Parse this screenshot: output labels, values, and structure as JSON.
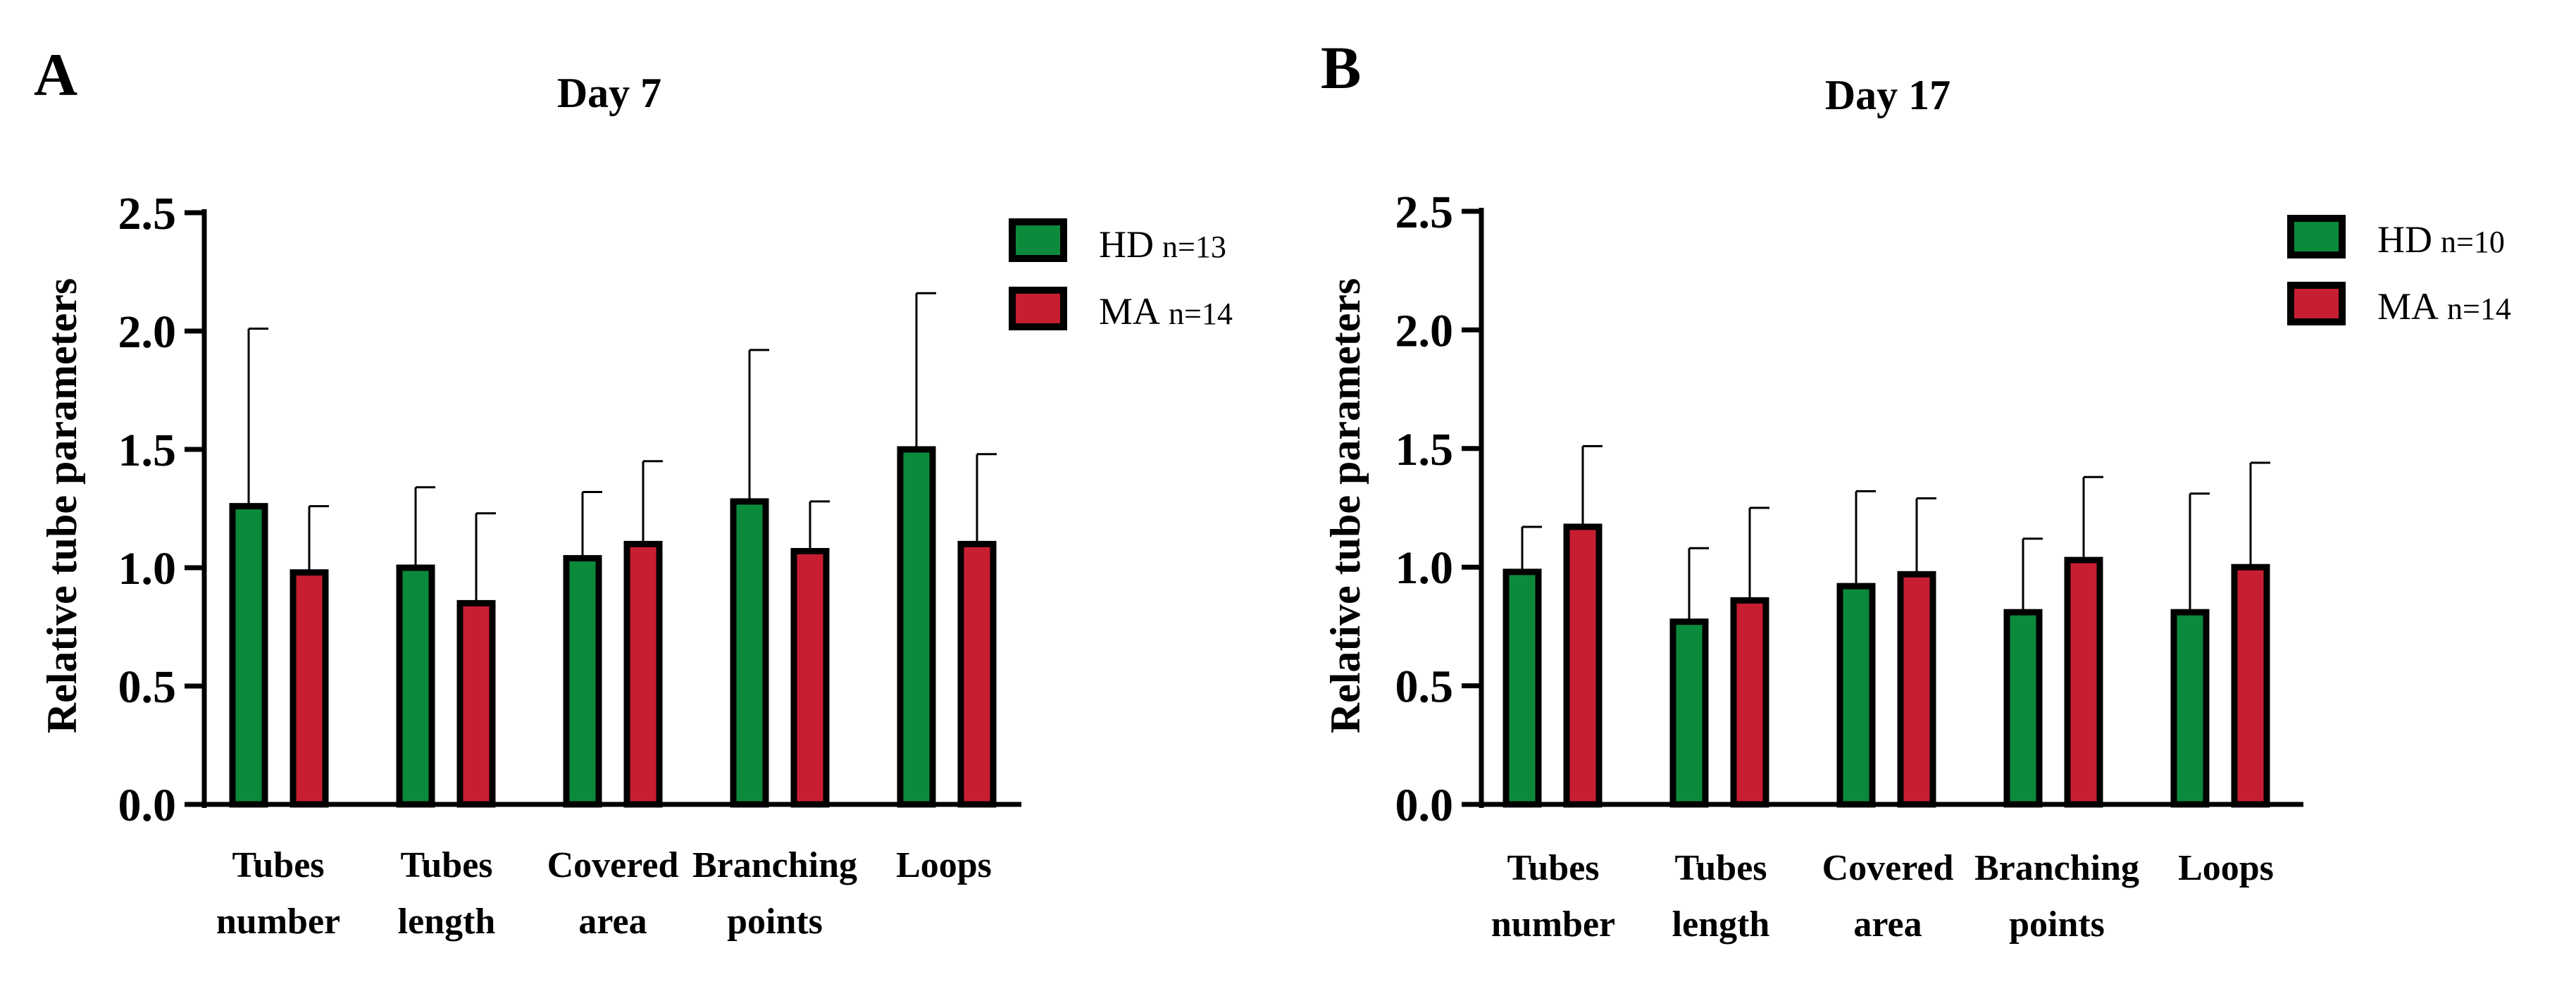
{
  "colors": {
    "hd": "#0b8a3c",
    "ma": "#c81e32",
    "axis": "#000000"
  },
  "chart_data": [
    {
      "type": "bar",
      "panel": "A",
      "title": "Day 7",
      "xlabel": "",
      "ylabel": "Relative tube parameters",
      "ylim": [
        0,
        2.5
      ],
      "yticks": [
        "0.0",
        "0.5",
        "1.0",
        "1.5",
        "2.0",
        "2.5"
      ],
      "categories": [
        [
          "Tubes",
          "number"
        ],
        [
          "Tubes",
          "length"
        ],
        [
          "Covered",
          "area"
        ],
        [
          "Branching",
          "points"
        ],
        [
          "Loops"
        ]
      ],
      "legend": {
        "position": "top-right"
      },
      "series": [
        {
          "name": "HD",
          "n": "n=13",
          "color": "#0b8a3c",
          "values": [
            1.26,
            1.0,
            1.04,
            1.28,
            1.5
          ],
          "errors": [
            0.75,
            0.34,
            0.28,
            0.64,
            0.66
          ]
        },
        {
          "name": "MA",
          "n": "n=14",
          "color": "#c81e32",
          "values": [
            0.98,
            0.85,
            1.1,
            1.07,
            1.1
          ],
          "errors": [
            0.28,
            0.38,
            0.35,
            0.21,
            0.38
          ]
        }
      ]
    },
    {
      "type": "bar",
      "panel": "B",
      "title": "Day 17",
      "xlabel": "",
      "ylabel": "Relative tube parameters",
      "ylim": [
        0,
        2.5
      ],
      "yticks": [
        "0.0",
        "0.5",
        "1.0",
        "1.5",
        "2.0",
        "2.5"
      ],
      "categories": [
        [
          "Tubes",
          "number"
        ],
        [
          "Tubes",
          "length"
        ],
        [
          "Covered",
          "area"
        ],
        [
          "Branching",
          "points"
        ],
        [
          "Loops"
        ]
      ],
      "legend": {
        "position": "top-right"
      },
      "series": [
        {
          "name": "HD",
          "n": "n=10",
          "color": "#0b8a3c",
          "values": [
            0.98,
            0.77,
            0.92,
            0.81,
            0.81
          ],
          "errors": [
            0.19,
            0.31,
            0.4,
            0.31,
            0.5
          ]
        },
        {
          "name": "MA",
          "n": "n=14",
          "color": "#c81e32",
          "values": [
            1.17,
            0.86,
            0.97,
            1.03,
            1.0
          ],
          "errors": [
            0.34,
            0.39,
            0.32,
            0.35,
            0.44
          ]
        }
      ]
    }
  ]
}
